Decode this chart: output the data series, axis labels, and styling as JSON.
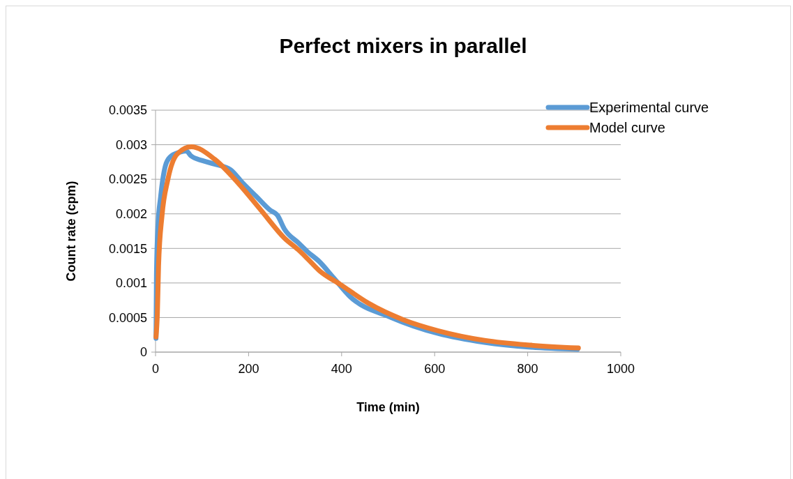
{
  "chart_data": {
    "type": "line",
    "title": "Perfect mixers in parallel",
    "xlabel": "Time (min)",
    "ylabel": "Count rate (cpm)",
    "xlim": [
      0,
      1000
    ],
    "xticks": [
      0,
      200,
      400,
      600,
      800,
      1000
    ],
    "ylim": [
      0,
      0.0035
    ],
    "yticks": [
      {
        "value": 0,
        "label": "0"
      },
      {
        "value": 0.0005,
        "label": "0.0005"
      },
      {
        "value": 0.001,
        "label": "0.001"
      },
      {
        "value": 0.0015,
        "label": "0.0015"
      },
      {
        "value": 0.002,
        "label": "0.002"
      },
      {
        "value": 0.0025,
        "label": "0.0025"
      },
      {
        "value": 0.003,
        "label": "0.003"
      },
      {
        "value": 0.0035,
        "label": "0.0035"
      }
    ],
    "grid": "y",
    "legend": "top right",
    "marker": "none",
    "line_style": "solid",
    "series": [
      {
        "name": "Experimental curve",
        "color": "#5b9bd5",
        "x": [
          1,
          2,
          5,
          11,
          21,
          31,
          51,
          66,
          76,
          101,
          127,
          161,
          187,
          217,
          247,
          262,
          277,
          307,
          327,
          352,
          382,
          417,
          507,
          607,
          707,
          807,
          907
        ],
        "values": [
          0.0002,
          0.0011,
          0.0018,
          0.00225,
          0.00269,
          0.00282,
          0.00289,
          0.00291,
          0.00284,
          0.00277,
          0.00272,
          0.00264,
          0.00245,
          0.00225,
          0.00205,
          0.00198,
          0.00178,
          0.00158,
          0.00145,
          0.00131,
          0.00108,
          0.00081,
          0.0005,
          0.00027,
          0.00014,
          7e-05,
          4e-05
        ]
      },
      {
        "name": "Model curve",
        "color": "#ed7d31",
        "x": [
          1,
          4,
          6.5,
          14,
          26,
          46,
          77,
          127,
          177,
          227,
          277,
          307,
          327,
          352,
          397,
          457,
          532,
          607,
          707,
          807,
          909
        ],
        "values": [
          0.00022,
          0.00057,
          0.00125,
          0.00198,
          0.00248,
          0.00286,
          0.00297,
          0.00279,
          0.00245,
          0.00205,
          0.00165,
          0.00148,
          0.00135,
          0.00118,
          0.00098,
          0.00071,
          0.00047,
          0.00031,
          0.00017,
          0.0001,
          6e-05
        ]
      }
    ]
  }
}
